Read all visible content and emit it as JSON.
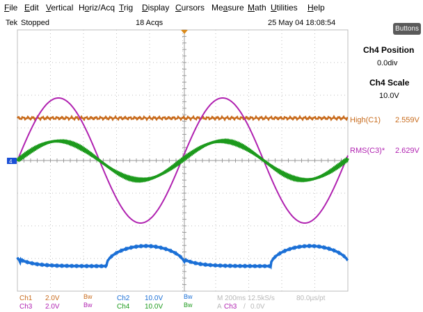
{
  "menu": [
    "File",
    "Edit",
    "Vertical",
    "Horiz/Acq",
    "Trig",
    "Display",
    "Cursors",
    "Measure",
    "Math",
    "Utilities",
    "Help"
  ],
  "menu_accel": [
    "F",
    "E",
    "V",
    "o",
    "T",
    "D",
    "C",
    "a",
    "M",
    "U",
    "H"
  ],
  "status": {
    "brand": "Tek",
    "state": "Stopped",
    "acqs": "18 Acqs",
    "datetime": "25 May 04 18:08:54"
  },
  "buttons_label": "Buttons",
  "side_panel": {
    "pos_title": "Ch4 Position",
    "pos_value": "0.0div",
    "scale_title": "Ch4 Scale",
    "scale_value": "10.0V"
  },
  "measurements": [
    {
      "label": "High(C1)",
      "value": "2.559V",
      "color": "#c86b1c"
    },
    {
      "label": "RMS(C3)*",
      "value": "2.629V",
      "color": "#b021b0"
    }
  ],
  "channels": {
    "ch1": {
      "name": "Ch1",
      "scale": "2.0V",
      "bw": "Bw",
      "color": "#c86b1c"
    },
    "ch2": {
      "name": "Ch2",
      "scale": "10.0V",
      "bw": "Bw",
      "color": "#1a6fd6"
    },
    "ch3": {
      "name": "Ch3",
      "scale": "2.0V",
      "bw": "Bw",
      "color": "#b021b0"
    },
    "ch4": {
      "name": "Ch4",
      "scale": "10.0V",
      "bw": "Bw",
      "color": "#1c9a1c"
    }
  },
  "timebase": {
    "line": "M 200ms 12.5kS/s",
    "per_pt": "80.0µs/pt"
  },
  "trigger": {
    "mode": "A",
    "source": "Ch3",
    "slope": "/",
    "level": "0.0V"
  },
  "ground_marker": "4",
  "colors": {
    "grid": "#bdbdbd",
    "dim_text": "#b8b8b8",
    "trigger_marker": "#d98a1c"
  }
}
